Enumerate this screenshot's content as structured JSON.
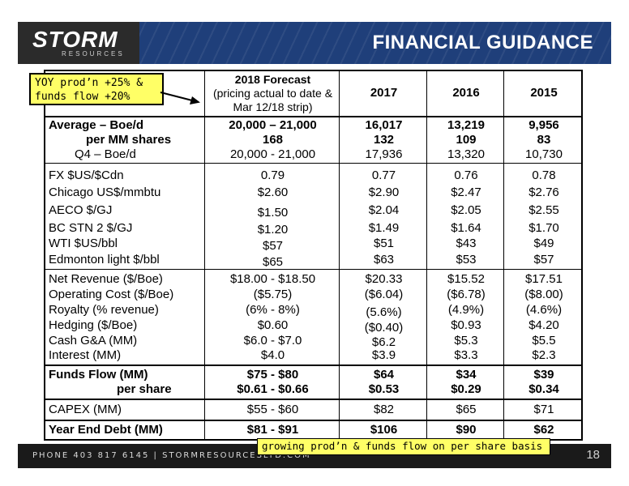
{
  "header": {
    "logo": "STORM",
    "logo_sub": "RESOURCES",
    "title": "FINANCIAL GUIDANCE"
  },
  "footer": {
    "contact": "PHONE 403 817 6145  |  STORMRESOURCESLTD.COM",
    "page_number": "18"
  },
  "callouts": {
    "top_line1": "YOY prod’n +25% &",
    "top_line2": "funds flow +20%",
    "bottom": "growing prod’n & funds flow on per share basis"
  },
  "table": {
    "columns": {
      "forecast_line1": "2018 Forecast",
      "forecast_line2": "(pricing actual to date &",
      "forecast_line3": "Mar 12/18 strip)",
      "y2017": "2017",
      "y2016": "2016",
      "y2015": "2015"
    },
    "production": [
      {
        "label": "Average – Boe/d",
        "v": [
          "20,000 – 21,000",
          "16,017",
          "13,219",
          "9,956"
        ]
      },
      {
        "label": "per MM shares",
        "v": [
          "168",
          "132",
          "109",
          "83"
        ]
      },
      {
        "label": "Q4 – Boe/d",
        "v": [
          "20,000 - 21,000",
          "17,936",
          "13,320",
          "10,730"
        ]
      }
    ],
    "pricing": [
      {
        "label": "FX $US/$Cdn",
        "v": [
          "0.79",
          "0.77",
          "0.76",
          "0.78"
        ]
      },
      {
        "label": "Chicago US$/mmbtu",
        "v": [
          "$2.60",
          "$2.90",
          "$2.47",
          "$2.76"
        ]
      },
      {
        "label": "AECO $/GJ",
        "v": [
          "$1.50",
          "$2.04",
          "$2.05",
          "$2.55"
        ]
      },
      {
        "label": "BC STN 2 $/GJ",
        "v": [
          "$1.20",
          "$1.49",
          "$1.64",
          "$1.70"
        ]
      },
      {
        "label": "WTI $US/bbl",
        "v": [
          "$57",
          "$51",
          "$43",
          "$49"
        ]
      },
      {
        "label": "Edmonton light $/bbl",
        "v": [
          "$65",
          "$63",
          "$53",
          "$57"
        ]
      }
    ],
    "netback": [
      {
        "label": "Net Revenue ($/Boe)",
        "v": [
          "$18.00 - $18.50",
          "$20.33",
          "$15.52",
          "$17.51"
        ]
      },
      {
        "label": "Operating Cost ($/Boe)",
        "v": [
          "($5.75)",
          "($6.04)",
          "($6.78)",
          "($8.00)"
        ]
      },
      {
        "label": "Royalty (% revenue)",
        "v": [
          "(6% - 8%)",
          "(5.6%)",
          "(4.9%)",
          "(4.6%)"
        ]
      },
      {
        "label": "Hedging ($/Boe)",
        "v": [
          "$0.60",
          "($0.40)",
          "$0.93",
          "$4.20"
        ]
      },
      {
        "label": "Cash G&A (MM)",
        "v": [
          "$6.0 - $7.0",
          "$6.2",
          "$5.3",
          "$5.5"
        ]
      },
      {
        "label": "Interest (MM)",
        "v": [
          "$4.0",
          "$3.9",
          "$3.3",
          "$2.3"
        ]
      }
    ],
    "funds_flow": [
      {
        "label": "Funds Flow (MM)",
        "v": [
          "$75 - $80",
          "$64",
          "$34",
          "$39"
        ]
      },
      {
        "label": "per share",
        "v": [
          "$0.61 - $0.66",
          "$0.53",
          "$0.29",
          "$0.34"
        ]
      }
    ],
    "capex": {
      "label": "CAPEX (MM)",
      "v": [
        "$55 - $60",
        "$82",
        "$65",
        "$71"
      ]
    },
    "debt": {
      "label": "Year End Debt (MM)",
      "v": [
        "$81 - $91",
        "$106",
        "$90",
        "$62"
      ]
    }
  }
}
